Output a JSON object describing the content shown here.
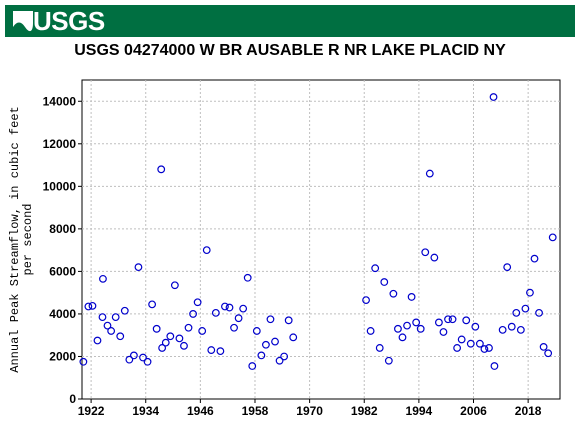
{
  "header": {
    "logo_text": "USGS",
    "bar_color": "#006f41"
  },
  "chart_data": {
    "type": "scatter",
    "title": "USGS 04274000 W BR AUSABLE R NR LAKE PLACID NY",
    "ylabel": "Annual Peak Streamflow, in cubic feet per second",
    "ylabel_lines": [
      "Annual Peak Streamflow, in cubic feet",
      "per second"
    ],
    "xlabel": "",
    "xlim": [
      1920,
      2025
    ],
    "ylim": [
      0,
      15000
    ],
    "x_ticks": [
      1922,
      1934,
      1946,
      1958,
      1970,
      1982,
      1994,
      2006,
      2018
    ],
    "y_ticks": [
      0,
      2000,
      4000,
      6000,
      8000,
      10000,
      12000,
      14000
    ],
    "marker": "open-circle",
    "marker_color": "#0000cc",
    "grid": true,
    "series": [
      {
        "points": [
          [
            1920.3,
            1750
          ],
          [
            1921.4,
            4350
          ],
          [
            1922.3,
            4380
          ],
          [
            1923.4,
            2750
          ],
          [
            1924.6,
            5650
          ],
          [
            1924.5,
            3850
          ],
          [
            1925.6,
            3450
          ],
          [
            1926.4,
            3200
          ],
          [
            1927.4,
            3850
          ],
          [
            1928.4,
            2950
          ],
          [
            1929.4,
            4150
          ],
          [
            1930.4,
            1850
          ],
          [
            1931.4,
            2050
          ],
          [
            1932.4,
            6200
          ],
          [
            1933.4,
            1950
          ],
          [
            1934.4,
            1750
          ],
          [
            1935.4,
            4450
          ],
          [
            1936.4,
            3300
          ],
          [
            1937.4,
            10800
          ],
          [
            1937.6,
            2400
          ],
          [
            1938.4,
            2650
          ],
          [
            1939.4,
            2950
          ],
          [
            1940.4,
            5350
          ],
          [
            1941.4,
            2850
          ],
          [
            1942.4,
            2500
          ],
          [
            1943.4,
            3350
          ],
          [
            1944.4,
            4000
          ],
          [
            1945.4,
            4550
          ],
          [
            1946.4,
            3200
          ],
          [
            1947.4,
            7000
          ],
          [
            1948.4,
            2300
          ],
          [
            1949.4,
            4050
          ],
          [
            1950.4,
            2250
          ],
          [
            1951.4,
            4350
          ],
          [
            1952.4,
            4300
          ],
          [
            1953.4,
            3350
          ],
          [
            1954.4,
            3800
          ],
          [
            1955.4,
            4250
          ],
          [
            1956.4,
            5700
          ],
          [
            1957.4,
            1550
          ],
          [
            1958.4,
            3200
          ],
          [
            1959.4,
            2050
          ],
          [
            1960.4,
            2550
          ],
          [
            1961.4,
            3750
          ],
          [
            1962.4,
            2700
          ],
          [
            1963.4,
            1800
          ],
          [
            1964.4,
            2000
          ],
          [
            1965.4,
            3700
          ],
          [
            1966.4,
            2900
          ],
          [
            1982.4,
            4650
          ],
          [
            1983.4,
            3200
          ],
          [
            1984.4,
            6150
          ],
          [
            1985.4,
            2400
          ],
          [
            1986.4,
            5500
          ],
          [
            1987.4,
            1800
          ],
          [
            1988.4,
            4950
          ],
          [
            1989.4,
            3300
          ],
          [
            1990.4,
            2900
          ],
          [
            1991.4,
            3450
          ],
          [
            1992.4,
            4800
          ],
          [
            1993.4,
            3600
          ],
          [
            1994.4,
            3300
          ],
          [
            1995.4,
            6900
          ],
          [
            1996.4,
            10600
          ],
          [
            1997.4,
            6650
          ],
          [
            1998.4,
            3600
          ],
          [
            1999.4,
            3150
          ],
          [
            2000.4,
            3750
          ],
          [
            2001.4,
            3750
          ],
          [
            2002.4,
            2400
          ],
          [
            2003.4,
            2800
          ],
          [
            2004.4,
            3700
          ],
          [
            2005.4,
            2600
          ],
          [
            2006.4,
            3400
          ],
          [
            2007.4,
            2600
          ],
          [
            2008.4,
            2350
          ],
          [
            2009.4,
            2400
          ],
          [
            2010.4,
            14200
          ],
          [
            2010.6,
            1550
          ],
          [
            2012.4,
            3250
          ],
          [
            2013.4,
            6200
          ],
          [
            2014.4,
            3400
          ],
          [
            2015.4,
            4050
          ],
          [
            2016.4,
            3250
          ],
          [
            2017.4,
            4250
          ],
          [
            2018.4,
            5000
          ],
          [
            2019.4,
            6600
          ],
          [
            2020.4,
            4050
          ],
          [
            2021.4,
            2450
          ],
          [
            2022.4,
            2150
          ],
          [
            2023.4,
            7600
          ]
        ]
      }
    ]
  }
}
